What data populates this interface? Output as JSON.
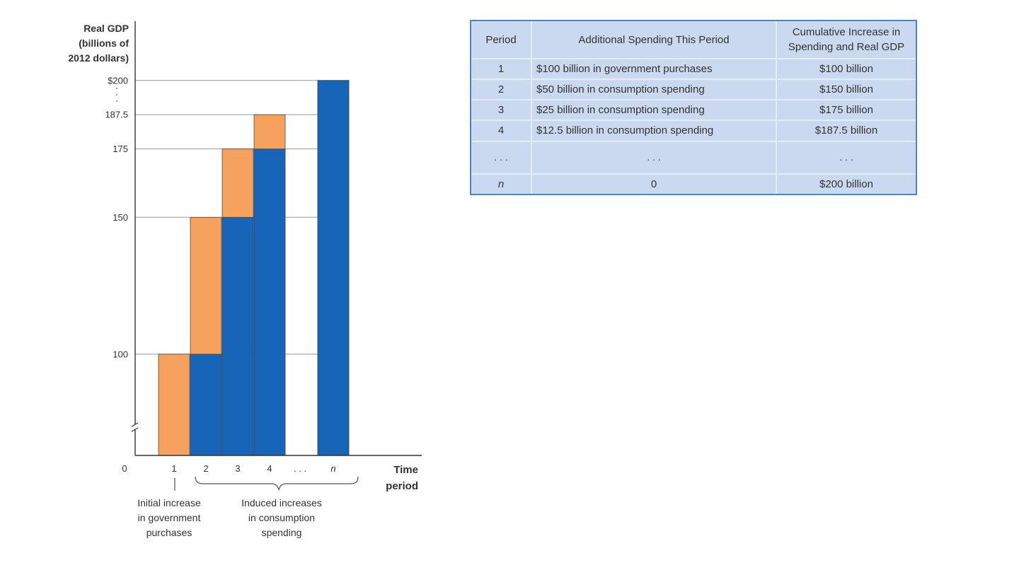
{
  "chart_data": {
    "type": "bar",
    "stacked": true,
    "ylabel_lines": [
      "Real GDP",
      "(billions of",
      "2012 dollars)"
    ],
    "y_ticks": [
      {
        "value": 200,
        "label": "$200"
      },
      {
        "value": 187.5,
        "label": "187.5"
      },
      {
        "value": 175,
        "label": "175"
      },
      {
        "value": 150,
        "label": "150"
      },
      {
        "value": 100,
        "label": "100"
      }
    ],
    "y_axis_origin_label": "0",
    "y_axis_break": true,
    "y_break_value": 63,
    "xlabel_lines": [
      "Time",
      "period"
    ],
    "categories": [
      "1",
      "2",
      "3",
      "4",
      "n"
    ],
    "x_ellipsis_label": ". . .",
    "series": [
      {
        "role": "previous-cumulative",
        "color": "#1665b8",
        "values": [
          0,
          100,
          150,
          175,
          200
        ]
      },
      {
        "role": "additional-spending",
        "color": "#f6a15e",
        "values": [
          100,
          50,
          25,
          12.5,
          0
        ]
      }
    ],
    "annotations": {
      "initial_lines": [
        "Initial increase",
        "in government",
        "purchases"
      ],
      "induced_lines": [
        "Induced increases",
        "in consumption",
        "spending"
      ]
    }
  },
  "table": {
    "headers": {
      "period": "Period",
      "additional": "Additional Spending This Period",
      "cumulative_lines": [
        "Cumulative Increase in",
        "Spending and Real GDP"
      ]
    },
    "rows": [
      {
        "period": "1",
        "additional": "$100 billion in government purchases",
        "cumulative": "$100 billion"
      },
      {
        "period": "2",
        "additional": "$50 billion in consumption spending",
        "cumulative": "$150 billion"
      },
      {
        "period": "3",
        "additional": "$25 billion in consumption spending",
        "cumulative": "$175 billion"
      },
      {
        "period": "4",
        "additional": "$12.5 billion in consumption spending",
        "cumulative": "$187.5 billion"
      }
    ],
    "dots_row": ". . .",
    "final_row": {
      "period": "n",
      "additional": "0",
      "cumulative": "$200 billion"
    }
  }
}
